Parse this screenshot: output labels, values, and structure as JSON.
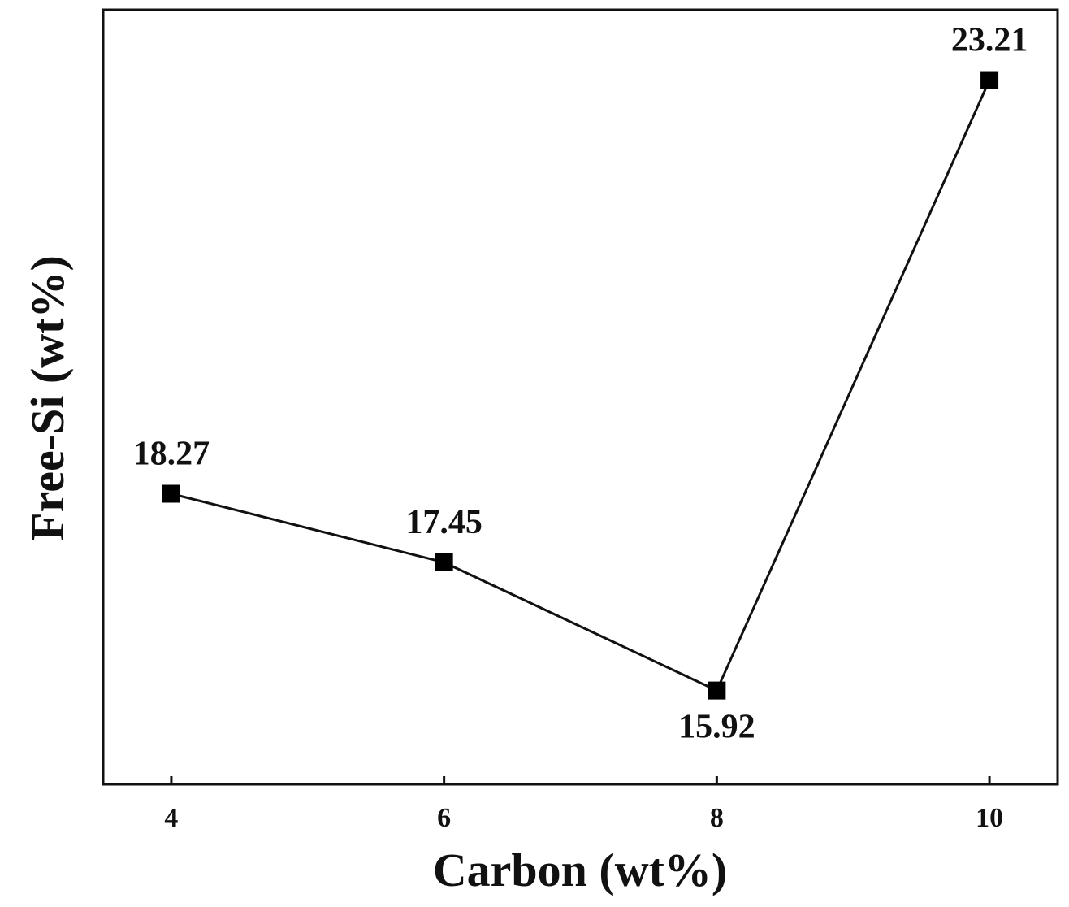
{
  "chart_data": {
    "type": "line",
    "title": "",
    "xlabel": "Carbon (wt%)",
    "ylabel": "Free-Si (wt%)",
    "x": [
      4,
      6,
      8,
      10
    ],
    "x_ticks": [
      "4",
      "6",
      "8",
      "10"
    ],
    "xlim": [
      3.5,
      10.5
    ],
    "ylim": [
      14.8,
      24.05
    ],
    "y_ticks_shown": false,
    "grid": false,
    "legend": "none",
    "series": [
      {
        "values": [
          18.27,
          17.45,
          15.92,
          23.21
        ],
        "labels": [
          "18.27",
          "17.45",
          "15.92",
          "23.21"
        ],
        "label_positions": [
          "above",
          "above",
          "below",
          "above"
        ],
        "color": "#000000",
        "marker": "square"
      }
    ]
  }
}
